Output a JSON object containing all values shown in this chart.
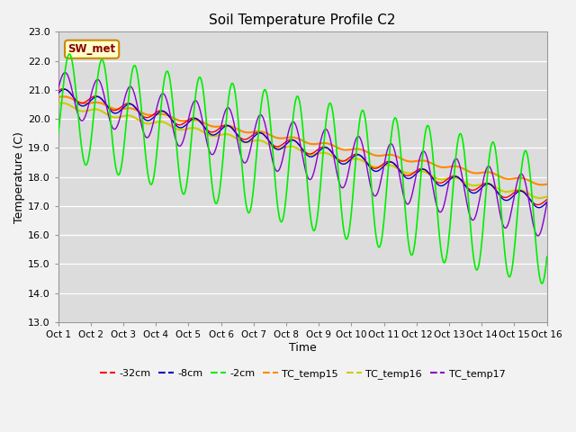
{
  "title": "Soil Temperature Profile C2",
  "xlabel": "Time",
  "ylabel": "Temperature (C)",
  "ylim": [
    13.0,
    23.0
  ],
  "yticks": [
    13.0,
    14.0,
    15.0,
    16.0,
    17.0,
    18.0,
    19.0,
    20.0,
    21.0,
    22.0,
    23.0
  ],
  "xtick_labels": [
    "Oct 1",
    "Oct 2",
    "Oct 3",
    "Oct 4",
    "Oct 5",
    "Oct 6",
    "Oct 7",
    "Oct 8",
    "Oct 9",
    "Oct 10",
    "Oct 11",
    "Oct 12",
    "Oct 13",
    "Oct 14",
    "Oct 15",
    "Oct 16"
  ],
  "colors": {
    "minus32cm": "#ff0000",
    "minus8cm": "#0000cc",
    "minus2cm": "#00ee00",
    "TC_temp15": "#ff8800",
    "TC_temp16": "#cccc00",
    "TC_temp17": "#8800cc"
  },
  "annotation_text": "SW_met",
  "annotation_bg": "#ffffcc",
  "annotation_border": "#cc8800",
  "annotation_text_color": "#880000",
  "plot_bg_color": "#dcdcdc",
  "fig_bg_color": "#f2f2f2",
  "days": 15
}
